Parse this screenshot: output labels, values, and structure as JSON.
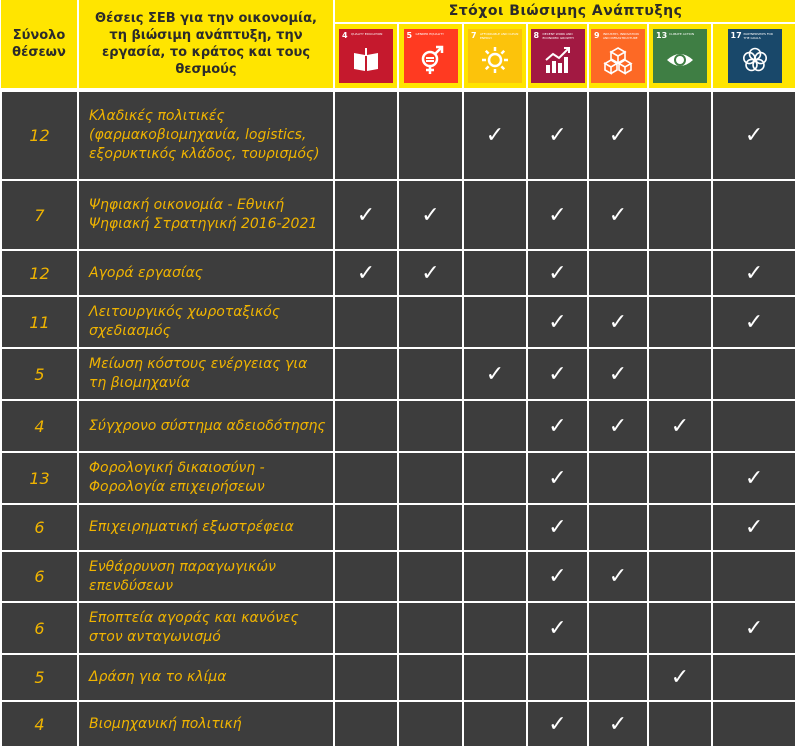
{
  "header": {
    "total_label": "Σύνολο θέσεων",
    "positions_label": "Θέσεις ΣΕΒ για την οικονομία, τη βιώσιμη ανάπτυξη, την εργασία, το κράτος και τους θεσμούς",
    "sdg_label": "Στόχοι Βιώσιμης Ανάπτυξης"
  },
  "goals": [
    {
      "number": "4",
      "label": "QUALITY EDUCATION",
      "color": "#c5192d",
      "icon": "book-icon"
    },
    {
      "number": "5",
      "label": "GENDER EQUALITY",
      "color": "#ff3a21",
      "icon": "gender-symbol-icon"
    },
    {
      "number": "7",
      "label": "AFFORDABLE AND CLEAN ENERGY",
      "color": "#fcc30b",
      "icon": "sun-icon"
    },
    {
      "number": "8",
      "label": "DECENT WORK AND ECONOMIC GROWTH",
      "color": "#a21942",
      "icon": "growth-chart-icon"
    },
    {
      "number": "9",
      "label": "INDUSTRY, INNOVATION AND INFRASTRUCTURE",
      "color": "#fd6925",
      "icon": "cubes-icon"
    },
    {
      "number": "13",
      "label": "CLIMATE ACTION",
      "color": "#3f7e44",
      "icon": "eye-globe-icon"
    },
    {
      "number": "17",
      "label": "PARTNERSHIPS FOR THE GOALS",
      "color": "#19486a",
      "icon": "rings-icon"
    }
  ],
  "check_symbol": "✓",
  "rows": [
    {
      "total": "12",
      "position": "Κλαδικές πολιτικές (φαρμακοβιομηχανία, logistics, εξορυκτικός κλάδος, τουρισμός)",
      "checks": [
        false,
        false,
        true,
        true,
        true,
        false,
        true
      ]
    },
    {
      "total": "7",
      "position": "Ψηφιακή οικονομία - Εθνική Ψηφιακή Στρατηγική 2016-2021",
      "checks": [
        true,
        true,
        false,
        true,
        true,
        false,
        false
      ]
    },
    {
      "total": "12",
      "position": "Αγορά εργασίας",
      "checks": [
        true,
        true,
        false,
        true,
        false,
        false,
        true
      ]
    },
    {
      "total": "11",
      "position": "Λειτουργικός χωροταξικός σχεδιασμός",
      "checks": [
        false,
        false,
        false,
        true,
        true,
        false,
        true
      ]
    },
    {
      "total": "5",
      "position": "Μείωση κόστους ενέργειας για τη βιομηχανία",
      "checks": [
        false,
        false,
        true,
        true,
        true,
        false,
        false
      ]
    },
    {
      "total": "4",
      "position": "Σύγχρονο σύστημα αδειοδότησης",
      "checks": [
        false,
        false,
        false,
        true,
        true,
        true,
        false
      ]
    },
    {
      "total": "13",
      "position": "Φορολογική δικαιοσύνη - Φορολογία επιχειρήσεων",
      "checks": [
        false,
        false,
        false,
        true,
        false,
        false,
        true
      ]
    },
    {
      "total": "6",
      "position": "Επιχειρηματική εξωστρέφεια",
      "checks": [
        false,
        false,
        false,
        true,
        false,
        false,
        true
      ]
    },
    {
      "total": "6",
      "position": "Ενθάρρυνση παραγωγικών επενδύσεων",
      "checks": [
        false,
        false,
        false,
        true,
        true,
        false,
        false
      ]
    },
    {
      "total": "6",
      "position": "Εποπτεία αγοράς και κανόνες στον ανταγωνισμό",
      "checks": [
        false,
        false,
        false,
        true,
        false,
        false,
        true
      ]
    },
    {
      "total": "5",
      "position": "Δράση για το κλίμα",
      "checks": [
        false,
        false,
        false,
        false,
        false,
        true,
        false
      ]
    },
    {
      "total": "4",
      "position": "Βιομηχανική πολιτική",
      "checks": [
        false,
        false,
        false,
        true,
        true,
        false,
        false
      ]
    }
  ]
}
